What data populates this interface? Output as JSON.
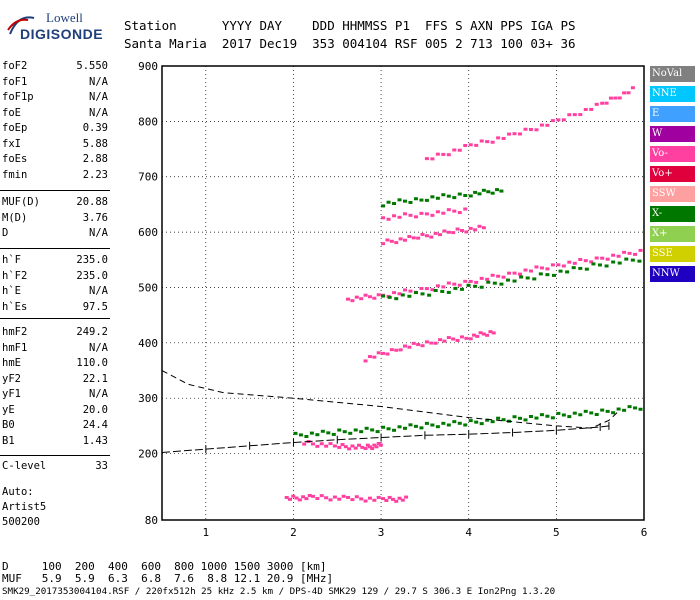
{
  "logo": {
    "line1": "Lowell",
    "line2": "DIGISONDE"
  },
  "header": {
    "line1": "Station      YYYY DAY    DDD HHMMSS P1  FFS S AXN PPS IGA PS",
    "line2": "Santa Maria  2017 Dec19  353 004104 RSF 005 2 713 100 03+ 36"
  },
  "params_group1": [
    {
      "k": "foF2",
      "v": "5.550"
    },
    {
      "k": "foF1",
      "v": "N/A"
    },
    {
      "k": "foF1p",
      "v": "N/A"
    },
    {
      "k": "foE",
      "v": "N/A"
    },
    {
      "k": "foEp",
      "v": "0.39"
    },
    {
      "k": "fxI",
      "v": "5.88"
    },
    {
      "k": "foEs",
      "v": "2.88"
    },
    {
      "k": "fmin",
      "v": "2.23"
    }
  ],
  "params_group2": [
    {
      "k": "MUF(D)",
      "v": "20.88"
    },
    {
      "k": "M(D)",
      "v": "3.76"
    },
    {
      "k": "D",
      "v": "N/A"
    }
  ],
  "params_group3": [
    {
      "k": "h`F",
      "v": "235.0"
    },
    {
      "k": "h`F2",
      "v": "235.0"
    },
    {
      "k": "h`E",
      "v": "N/A"
    },
    {
      "k": "h`Es",
      "v": "97.5"
    }
  ],
  "params_group4": [
    {
      "k": "hmF2",
      "v": "249.2"
    },
    {
      "k": "hmF1",
      "v": "N/A"
    },
    {
      "k": "hmE",
      "v": "110.0"
    },
    {
      "k": "yF2",
      "v": "22.1"
    },
    {
      "k": "yF1",
      "v": "N/A"
    },
    {
      "k": "yE",
      "v": "20.0"
    },
    {
      "k": "B0",
      "v": "24.4"
    },
    {
      "k": "B1",
      "v": "1.43"
    }
  ],
  "clevel": {
    "k": "C-level",
    "v": "33"
  },
  "auto": {
    "l1": "Auto:",
    "l2": "Artist5",
    "l3": "500200"
  },
  "legend": [
    {
      "label": "NoVal",
      "color": "#808080"
    },
    {
      "label": "NNE",
      "color": "#00c8ff"
    },
    {
      "label": "E",
      "color": "#3fa0ff"
    },
    {
      "label": "W",
      "color": "#a000a0"
    },
    {
      "label": "Vo-",
      "color": "#ff40a0"
    },
    {
      "label": "Vo+",
      "color": "#e0003c"
    },
    {
      "label": "SSW",
      "color": "#ffa0a0"
    },
    {
      "label": "X-",
      "color": "#007800"
    },
    {
      "label": "X+",
      "color": "#90d050"
    },
    {
      "label": "SSE",
      "color": "#d0d000"
    },
    {
      "label": "NNW",
      "color": "#2000c0"
    }
  ],
  "footer": {
    "line1": "D     100  200  400  600  800 1000 1500 3000 [km]",
    "line2": "MUF   5.9  5.9  6.3  6.8  7.6  8.8 12.1 20.9 [MHz]",
    "line3": "SMK29_2017353004104.RSF / 220fx512h 25 kHz 2.5 km / DPS-4D SMK29 129 / 29.7 S 306.3 E Ion2Png 1.3.20"
  },
  "chart_data": {
    "type": "scatter",
    "title": "",
    "xlabel": "",
    "ylabel": "",
    "xlim": [
      0.5,
      6.0
    ],
    "ylim": [
      80,
      900
    ],
    "x_ticks": [
      1,
      2,
      3,
      4,
      5,
      6
    ],
    "y_ticks": [
      80,
      200,
      300,
      400,
      500,
      600,
      700,
      800,
      900
    ],
    "series": [
      {
        "color": "#007800",
        "points": [
          [
            2.0,
            232
          ],
          [
            2.5,
            238
          ],
          [
            3.0,
            243
          ],
          [
            3.5,
            250
          ],
          [
            4.0,
            255
          ],
          [
            4.5,
            262
          ],
          [
            5.0,
            268
          ],
          [
            5.5,
            274
          ],
          [
            6.0,
            284
          ]
        ]
      },
      {
        "color": "#ff40a0",
        "points": [
          [
            2.1,
            218
          ],
          [
            2.5,
            212
          ],
          [
            2.8,
            210
          ],
          [
            3.0,
            215
          ]
        ]
      },
      {
        "color": "#ff40a0",
        "points": [
          [
            1.9,
            118
          ],
          [
            2.2,
            120
          ],
          [
            2.6,
            118
          ],
          [
            3.0,
            116
          ],
          [
            3.3,
            117
          ]
        ]
      },
      {
        "color": "#ff40a0",
        "points": [
          [
            2.8,
            370
          ],
          [
            3.2,
            390
          ],
          [
            3.6,
            402
          ],
          [
            4.0,
            410
          ],
          [
            4.3,
            420
          ]
        ]
      },
      {
        "color": "#ff40a0",
        "points": [
          [
            2.6,
            478
          ],
          [
            3.0,
            485
          ],
          [
            3.5,
            497
          ],
          [
            4.0,
            510
          ],
          [
            4.5,
            525
          ],
          [
            5.0,
            540
          ],
          [
            5.5,
            552
          ],
          [
            6.0,
            566
          ]
        ]
      },
      {
        "color": "#007800",
        "points": [
          [
            3.0,
            480
          ],
          [
            3.6,
            490
          ],
          [
            4.2,
            505
          ],
          [
            4.8,
            520
          ],
          [
            5.4,
            538
          ],
          [
            6.0,
            552
          ]
        ]
      },
      {
        "color": "#ff40a0",
        "points": [
          [
            3.0,
            580
          ],
          [
            3.4,
            590
          ],
          [
            3.8,
            600
          ],
          [
            4.2,
            608
          ]
        ]
      },
      {
        "color": "#ff40a0",
        "points": [
          [
            3.5,
            730
          ],
          [
            4.0,
            755
          ],
          [
            4.5,
            775
          ],
          [
            5.0,
            800
          ],
          [
            5.5,
            830
          ],
          [
            5.9,
            860
          ]
        ]
      },
      {
        "color": "#007800",
        "points": [
          [
            3.0,
            650
          ],
          [
            3.5,
            660
          ],
          [
            4.0,
            668
          ],
          [
            4.4,
            676
          ]
        ]
      },
      {
        "color": "#ff40a0",
        "points": [
          [
            3.0,
            625
          ],
          [
            3.5,
            632
          ],
          [
            4.0,
            640
          ]
        ]
      }
    ],
    "scaled_profile": [
      [
        0.5,
        202
      ],
      [
        1.0,
        208
      ],
      [
        1.5,
        214
      ],
      [
        2.0,
        220
      ],
      [
        2.5,
        225
      ],
      [
        3.0,
        229
      ],
      [
        3.5,
        233
      ],
      [
        4.0,
        235
      ],
      [
        4.5,
        238
      ],
      [
        5.0,
        242
      ],
      [
        5.5,
        248
      ],
      [
        5.6,
        250
      ]
    ],
    "dashed_profile": [
      [
        0.5,
        350
      ],
      [
        0.8,
        325
      ],
      [
        1.2,
        310
      ],
      [
        2.0,
        300
      ],
      [
        3.0,
        285
      ],
      [
        4.0,
        265
      ],
      [
        5.0,
        250
      ],
      [
        5.4,
        246
      ],
      [
        5.6,
        260
      ],
      [
        5.7,
        275
      ]
    ]
  }
}
